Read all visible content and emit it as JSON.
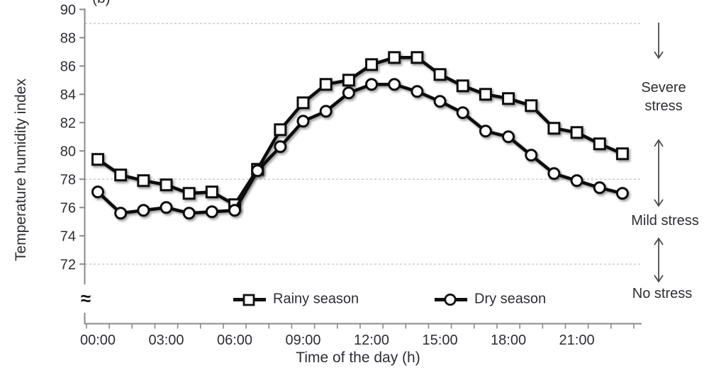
{
  "panel_label": "(b)",
  "chart_data": {
    "type": "line",
    "title": "",
    "xlabel": "Time of the day (h)",
    "ylabel": "Temperature humidity index",
    "categories": [
      "00:00",
      "01:00",
      "02:00",
      "03:00",
      "04:00",
      "05:00",
      "06:00",
      "07:00",
      "08:00",
      "09:00",
      "10:00",
      "11:00",
      "12:00",
      "13:00",
      "14:00",
      "15:00",
      "16:00",
      "17:00",
      "18:00",
      "19:00",
      "20:00",
      "21:00",
      "22:00",
      "23:00"
    ],
    "x_axis_tick_labels": [
      "00:00",
      "03:00",
      "06:00",
      "09:00",
      "12:00",
      "15:00",
      "18:00",
      "21:00"
    ],
    "y_ticks": [
      90,
      88,
      86,
      84,
      82,
      80,
      78,
      76,
      74,
      72
    ],
    "ylim": [
      72,
      90
    ],
    "y_axis_break_symbol": "≈",
    "grid": "horizontal dashed threshold lines only",
    "threshold_lines": [
      89,
      78,
      72
    ],
    "legend_position": "bottom inside plot",
    "series": [
      {
        "name": "Rainy season",
        "marker": "square",
        "values": [
          79.4,
          78.3,
          77.9,
          77.6,
          77.0,
          77.1,
          76.2,
          78.7,
          81.5,
          83.4,
          84.7,
          85.0,
          86.1,
          86.6,
          86.6,
          85.4,
          84.6,
          84.0,
          83.7,
          83.2,
          81.6,
          81.3,
          80.5,
          79.8
        ]
      },
      {
        "name": "Dry season",
        "marker": "circle",
        "values": [
          77.1,
          75.6,
          75.8,
          76.0,
          75.6,
          75.7,
          75.8,
          78.6,
          80.3,
          82.1,
          82.8,
          84.1,
          84.7,
          84.7,
          84.2,
          83.5,
          82.7,
          81.4,
          81.0,
          79.7,
          78.4,
          77.9,
          77.4,
          77.0
        ]
      }
    ],
    "stress_zones": [
      {
        "label": "Severe stress",
        "arrow": "down"
      },
      {
        "label": "Mild stress",
        "arrow": "up-down"
      },
      {
        "label": "No stress",
        "arrow": "up-down"
      }
    ]
  },
  "colors": {
    "series_color": "#111111",
    "marker_fill": "#ffffff",
    "grid_color": "#c6c6c6",
    "axis_color": "#8a8a8a",
    "text_color": "#2e2e33",
    "annotation_color": "#4d4d4d"
  }
}
